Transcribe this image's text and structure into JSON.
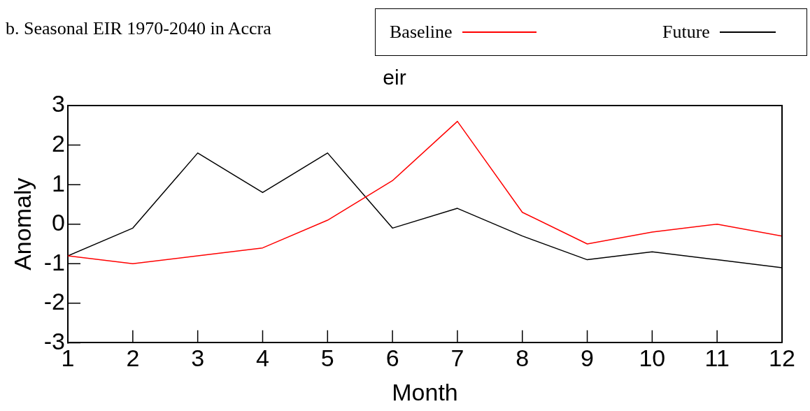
{
  "chart_data": {
    "type": "line",
    "title": "b. Seasonal EIR 1970-2040 in Accra",
    "subtitle": "eir",
    "xlabel": "Month",
    "ylabel": "Anomaly",
    "x": [
      1,
      2,
      3,
      4,
      5,
      6,
      7,
      8,
      9,
      10,
      11,
      12
    ],
    "series": [
      {
        "name": "Baseline",
        "color": "#ff0000",
        "values": [
          -0.8,
          -1.0,
          -0.8,
          -0.6,
          0.1,
          1.1,
          2.6,
          0.3,
          -0.5,
          -0.2,
          0.0,
          -0.3
        ]
      },
      {
        "name": "Future",
        "color": "#000000",
        "values": [
          -0.8,
          -0.1,
          1.8,
          0.8,
          1.8,
          -0.1,
          0.4,
          -0.3,
          -0.9,
          -0.7,
          -0.9,
          -1.1
        ]
      }
    ],
    "xlim": [
      1,
      12
    ],
    "xticks": [
      1,
      2,
      3,
      4,
      5,
      6,
      7,
      8,
      9,
      10,
      11,
      12
    ],
    "ylim": [
      -3,
      3
    ],
    "yticks": [
      -3,
      -2,
      -1,
      0,
      1,
      2,
      3
    ],
    "grid": false,
    "legend": "top right",
    "marker": "none",
    "line_style": "solid"
  }
}
